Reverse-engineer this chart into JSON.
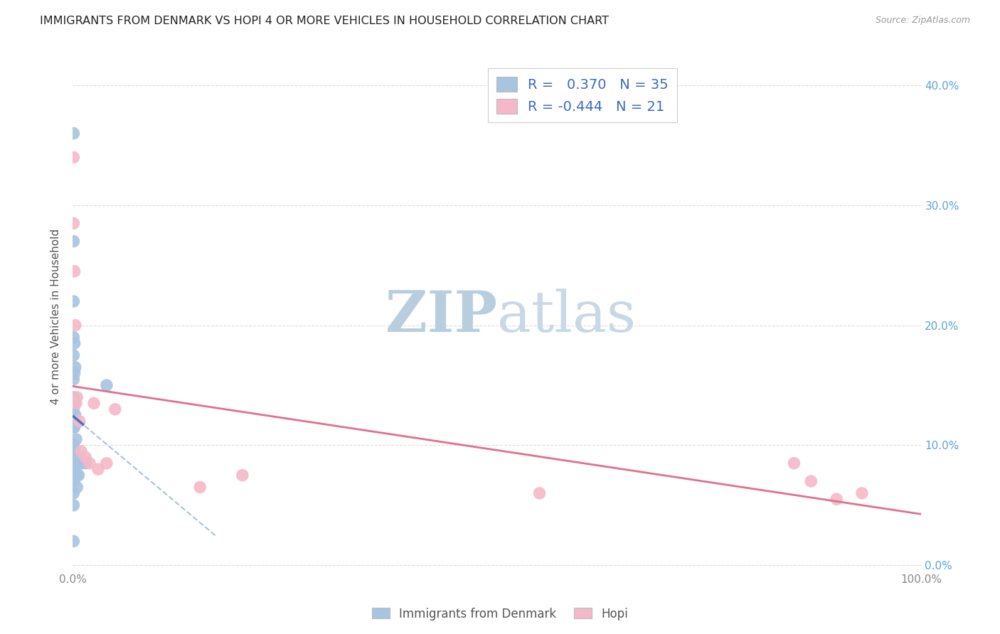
{
  "title": "IMMIGRANTS FROM DENMARK VS HOPI 4 OR MORE VEHICLES IN HOUSEHOLD CORRELATION CHART",
  "source": "Source: ZipAtlas.com",
  "ylabel": "4 or more Vehicles in Household",
  "xlim": [
    0.0,
    1.0
  ],
  "ylim": [
    -0.005,
    0.42
  ],
  "denmark_color": "#a8c4e0",
  "hopi_color": "#f4b8c8",
  "denmark_line_color": "#4472c4",
  "hopi_line_color": "#e07090",
  "denmark_R": 0.37,
  "denmark_N": 35,
  "hopi_R": -0.444,
  "hopi_N": 21,
  "denmark_scatter_x": [
    0.001,
    0.001,
    0.001,
    0.001,
    0.001,
    0.001,
    0.001,
    0.001,
    0.001,
    0.001,
    0.001,
    0.001,
    0.001,
    0.001,
    0.001,
    0.001,
    0.002,
    0.002,
    0.002,
    0.002,
    0.002,
    0.002,
    0.003,
    0.003,
    0.003,
    0.004,
    0.004,
    0.005,
    0.005,
    0.006,
    0.007,
    0.008,
    0.01,
    0.015,
    0.04
  ],
  "denmark_scatter_y": [
    0.36,
    0.27,
    0.22,
    0.19,
    0.175,
    0.155,
    0.14,
    0.13,
    0.115,
    0.1,
    0.09,
    0.08,
    0.07,
    0.06,
    0.05,
    0.02,
    0.185,
    0.16,
    0.135,
    0.115,
    0.095,
    0.08,
    0.165,
    0.125,
    0.09,
    0.105,
    0.075,
    0.09,
    0.065,
    0.085,
    0.075,
    0.085,
    0.085,
    0.085,
    0.15
  ],
  "hopi_scatter_x": [
    0.001,
    0.001,
    0.002,
    0.003,
    0.004,
    0.005,
    0.008,
    0.01,
    0.015,
    0.02,
    0.025,
    0.03,
    0.04,
    0.05,
    0.15,
    0.2,
    0.55,
    0.85,
    0.87,
    0.9,
    0.93
  ],
  "hopi_scatter_y": [
    0.34,
    0.285,
    0.245,
    0.2,
    0.135,
    0.14,
    0.12,
    0.095,
    0.09,
    0.085,
    0.135,
    0.08,
    0.085,
    0.13,
    0.065,
    0.075,
    0.06,
    0.085,
    0.07,
    0.055,
    0.06
  ],
  "watermark_zip": "ZIP",
  "watermark_atlas": "atlas",
  "watermark_color": "#ccd8e8"
}
